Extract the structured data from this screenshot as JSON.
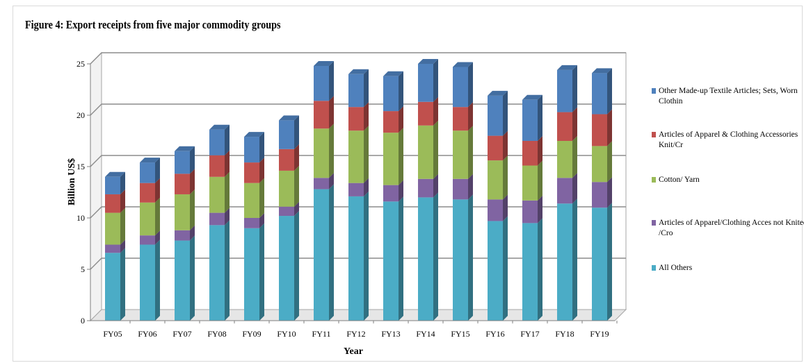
{
  "chart_data": {
    "type": "bar",
    "stacked": true,
    "title": "Figure 4: Export receipts from five major commodity  groups",
    "xlabel": "Year",
    "ylabel": "Billion US$",
    "ylim": [
      0,
      25
    ],
    "yticks": [
      0,
      5,
      10,
      15,
      20,
      25
    ],
    "grid": true,
    "legend_position": "right",
    "categories": [
      "FY05",
      "FY06",
      "FY07",
      "FY08",
      "FY09",
      "FY10",
      "FY11",
      "FY12",
      "FY13",
      "FY14",
      "FY15",
      "FY16",
      "FY17",
      "FY18",
      "FY19"
    ],
    "series": [
      {
        "name": "All Others",
        "color": "#4bacc6",
        "values": [
          6.6,
          7.4,
          7.8,
          9.3,
          9.0,
          10.2,
          12.8,
          12.1,
          11.6,
          12.0,
          11.8,
          9.7,
          9.5,
          11.4,
          11.0
        ]
      },
      {
        "name": "Articles of Apparel/Clothing Acces not Knited /Cro",
        "color": "#8064a2",
        "values": [
          0.8,
          0.9,
          1.0,
          1.2,
          1.0,
          0.9,
          1.1,
          1.3,
          1.6,
          1.8,
          2.0,
          2.1,
          2.2,
          2.5,
          2.5
        ]
      },
      {
        "name": "Cotton/ Yarn",
        "color": "#9bbb59",
        "values": [
          3.1,
          3.2,
          3.5,
          3.5,
          3.4,
          3.5,
          4.8,
          5.1,
          5.1,
          5.2,
          4.7,
          3.8,
          3.4,
          3.6,
          3.5
        ]
      },
      {
        "name": "Articles of Apparel & Clothing Accessories Knit/Cr",
        "color": "#c0504d",
        "values": [
          1.8,
          1.9,
          2.0,
          2.1,
          2.0,
          2.1,
          2.7,
          2.3,
          2.1,
          2.3,
          2.3,
          2.4,
          2.4,
          2.8,
          3.1
        ]
      },
      {
        "name": "Other Made-up Textile Articles; Sets, Worn Clothin",
        "color": "#4f81bd",
        "values": [
          1.7,
          2.0,
          2.2,
          2.5,
          2.5,
          2.8,
          3.4,
          3.2,
          3.4,
          3.7,
          3.9,
          3.9,
          4.0,
          4.1,
          4.0
        ]
      }
    ],
    "legend": [
      {
        "line1": "Other Made-up Textile Articles; Sets, Worn",
        "line2": "Clothin",
        "color": "#4f81bd"
      },
      {
        "line1": "Articles of Apparel & Clothing Accessories",
        "line2": "Knit/Cr",
        "color": "#c0504d"
      },
      {
        "line1": "Cotton/ Yarn",
        "line2": "",
        "color": "#9bbb59"
      },
      {
        "line1": "Articles of Apparel/Clothing Acces not Knited",
        "line2": "/Cro",
        "color": "#8064a2"
      },
      {
        "line1": "All Others",
        "line2": "",
        "color": "#4bacc6"
      }
    ]
  }
}
